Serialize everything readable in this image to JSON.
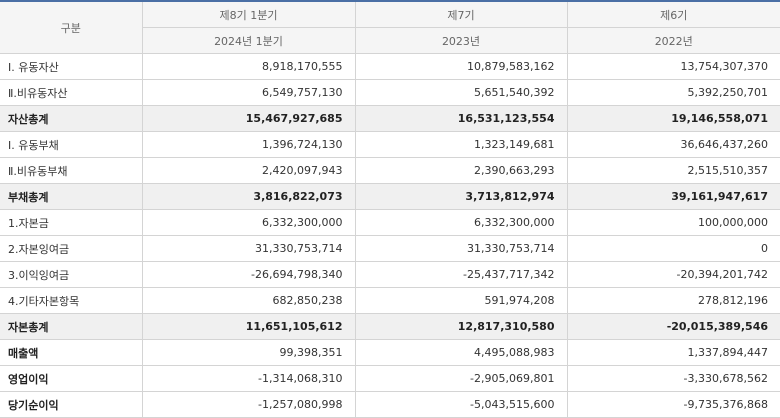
{
  "header": {
    "category": "구분",
    "periods": [
      {
        "label": "제8기 1분기",
        "date": "2024년 1분기"
      },
      {
        "label": "제7기",
        "date": "2023년"
      },
      {
        "label": "제6기",
        "date": "2022년"
      }
    ]
  },
  "rows": [
    {
      "label": "Ⅰ. 유동자산",
      "values": [
        "8,918,170,555",
        "10,879,583,162",
        "13,754,307,370"
      ]
    },
    {
      "label": "Ⅱ.비유동자산",
      "values": [
        "6,549,757,130",
        "5,651,540,392",
        "5,392,250,701"
      ]
    },
    {
      "label": "자산총계",
      "values": [
        "15,467,927,685",
        "16,531,123,554",
        "19,146,558,071"
      ]
    },
    {
      "label": "Ⅰ. 유동부채",
      "values": [
        "1,396,724,130",
        "1,323,149,681",
        "36,646,437,260"
      ]
    },
    {
      "label": "Ⅱ.비유동부채",
      "values": [
        "2,420,097,943",
        "2,390,663,293",
        "2,515,510,357"
      ]
    },
    {
      "label": "부채총계",
      "values": [
        "3,816,822,073",
        "3,713,812,974",
        "39,161,947,617"
      ]
    },
    {
      "label": "1.자본금",
      "values": [
        "6,332,300,000",
        "6,332,300,000",
        "100,000,000"
      ]
    },
    {
      "label": "2.자본잉여금",
      "values": [
        "31,330,753,714",
        "31,330,753,714",
        "0"
      ]
    },
    {
      "label": "3.이익잉여금",
      "values": [
        "-26,694,798,340",
        "-25,437,717,342",
        "-20,394,201,742"
      ]
    },
    {
      "label": "4.기타자본항목",
      "values": [
        "682,850,238",
        "591,974,208",
        "278,812,196"
      ]
    },
    {
      "label": "자본총계",
      "values": [
        "11,651,105,612",
        "12,817,310,580",
        "-20,015,389,546"
      ]
    },
    {
      "label": "매출액",
      "values": [
        "99,398,351",
        "4,495,088,983",
        "1,337,894,447"
      ]
    },
    {
      "label": "영업이익",
      "values": [
        "-1,314,068,310",
        "-2,905,069,801",
        "-3,330,678,562"
      ]
    },
    {
      "label": "당기순이익",
      "values": [
        "-1,257,080,998",
        "-5,043,515,600",
        "-9,735,376,868"
      ]
    }
  ]
}
